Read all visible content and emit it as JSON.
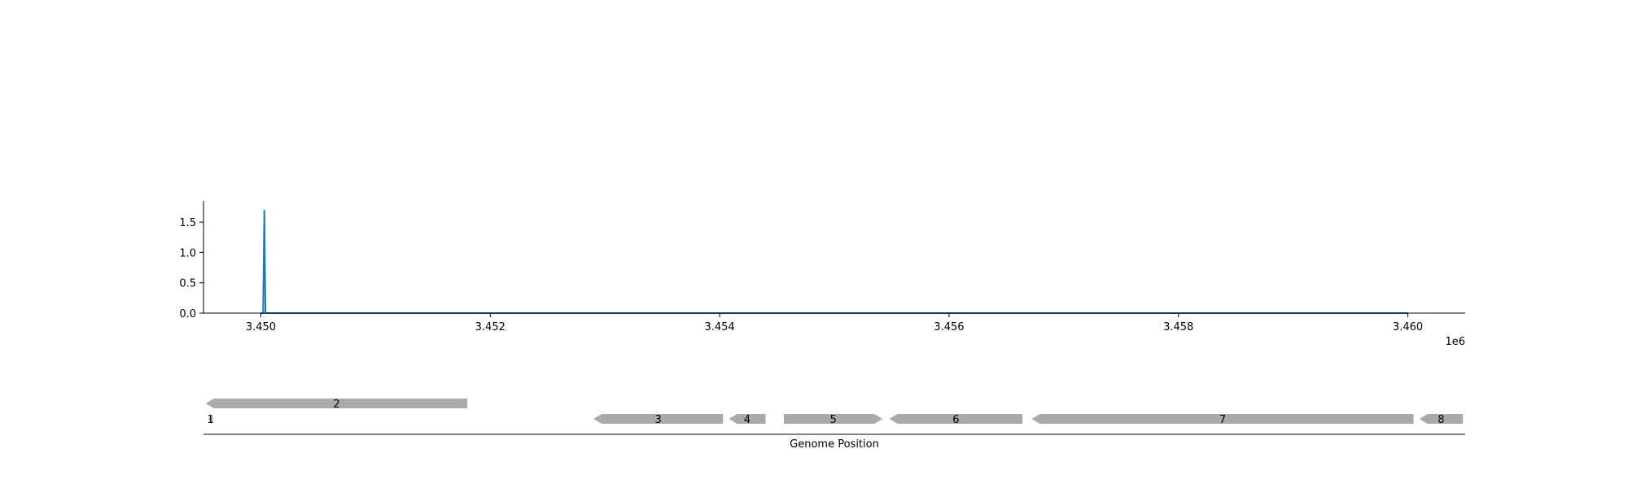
{
  "chart_data": [
    {
      "type": "line",
      "title": "",
      "xlabel": "",
      "ylabel": "",
      "xlim": [
        3449500,
        3460500
      ],
      "ylim": [
        0,
        1.85
      ],
      "x_offset_label": "1e6",
      "xticks": [
        3450000,
        3452000,
        3454000,
        3456000,
        3458000,
        3460000
      ],
      "xtick_labels": [
        "3.450",
        "3.452",
        "3.454",
        "3.456",
        "3.458",
        "3.460"
      ],
      "yticks": [
        0,
        0.5,
        1.0,
        1.5
      ],
      "ytick_labels": [
        "0.0",
        "0.5",
        "1.0",
        "1.5"
      ],
      "grid": false,
      "line_color": "#1f77b4",
      "series": [
        {
          "x": [
            3450000,
            3450020,
            3450030,
            3450040,
            3460000
          ],
          "y": [
            0,
            0,
            1.7,
            0,
            0
          ]
        }
      ]
    },
    {
      "type": "gene-track",
      "xlabel": "Genome Position",
      "gene_color": "#aaaaaa",
      "genes": [
        {
          "label": "1",
          "start": 3449540,
          "end": 3449580,
          "strand": "-",
          "row": 0
        },
        {
          "label": "2",
          "start": 3449520,
          "end": 3451800,
          "strand": "-",
          "row": 1
        },
        {
          "label": "3",
          "start": 3452900,
          "end": 3454030,
          "strand": "-",
          "row": 0
        },
        {
          "label": "4",
          "start": 3454080,
          "end": 3454400,
          "strand": "-",
          "row": 0
        },
        {
          "label": "5",
          "start": 3454560,
          "end": 3455420,
          "strand": "+",
          "row": 0
        },
        {
          "label": "6",
          "start": 3455480,
          "end": 3456640,
          "strand": "-",
          "row": 0
        },
        {
          "label": "7",
          "start": 3456720,
          "end": 3460050,
          "strand": "-",
          "row": 0
        },
        {
          "label": "8",
          "start": 3460100,
          "end": 3460480,
          "strand": "-",
          "row": 0
        }
      ]
    }
  ]
}
